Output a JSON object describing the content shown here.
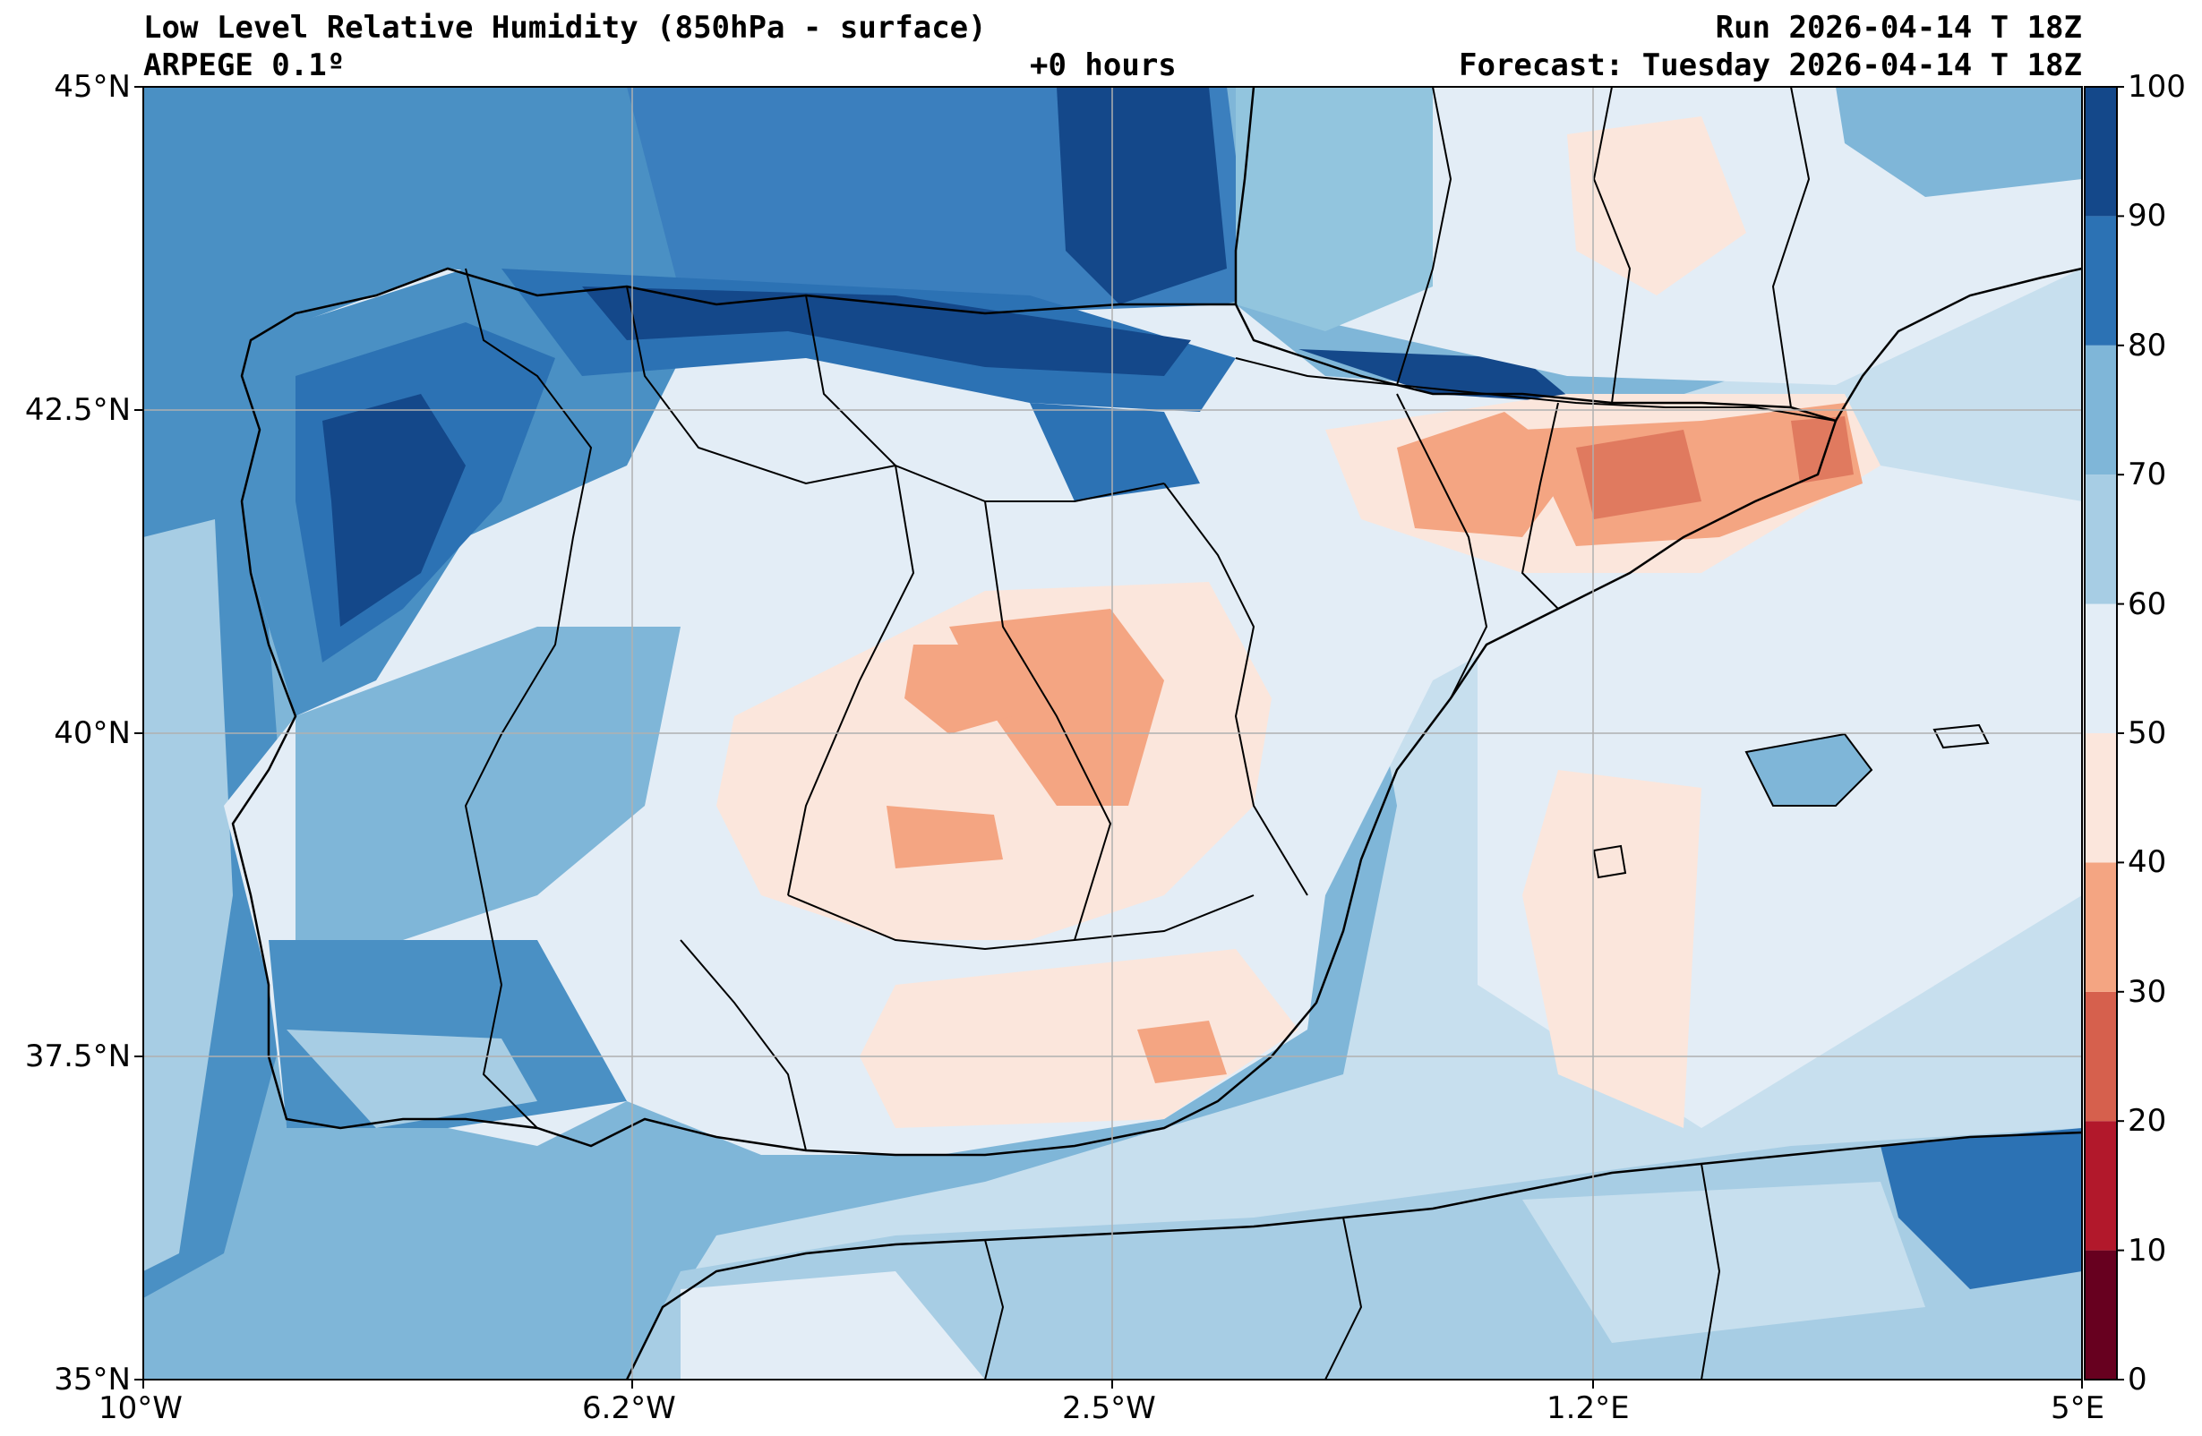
{
  "header": {
    "title": "Low Level Relative Humidity (850hPa - surface)",
    "model": "ARPEGE 0.1º",
    "lead_time": "+0 hours",
    "run": "Run 2026-04-14 T 18Z",
    "forecast": "Forecast: Tuesday 2026-04-14 T 18Z"
  },
  "axes": {
    "lat_labels": [
      "45°N",
      "42.5°N",
      "40°N",
      "37.5°N",
      "35°N"
    ],
    "lon_labels": [
      "10°W",
      "6.2°W",
      "2.5°W",
      "1.2°E",
      "5°E"
    ]
  },
  "colorbar": {
    "ticks": [
      "100",
      "90",
      "80",
      "70",
      "60",
      "50",
      "40",
      "30",
      "20",
      "10",
      "0"
    ],
    "colors": [
      "#67001f",
      "#b2182b",
      "#d6604d",
      "#f4a582",
      "#fddbc7",
      "#e8eef5",
      "#d1e5f0",
      "#92c5de",
      "#4393c3",
      "#2166ac",
      "#053061"
    ]
  },
  "palette": {
    "ocean": "#92c5de",
    "land_base": "#e3edf6",
    "border": "#000000",
    "grid": "#b0b0b0"
  }
}
